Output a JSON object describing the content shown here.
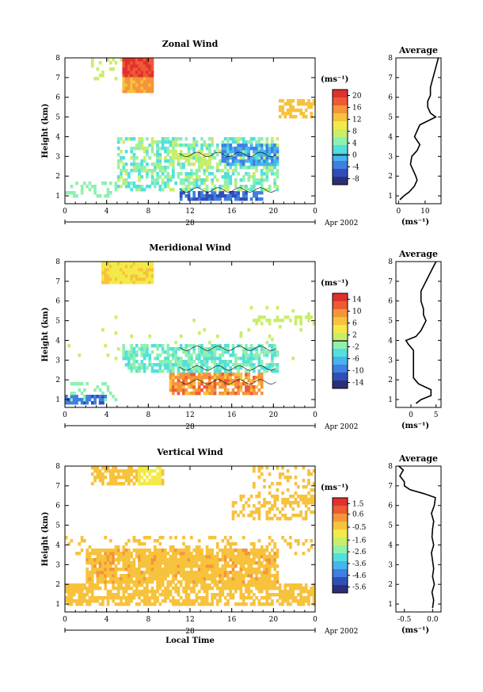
{
  "chart_data": [
    {
      "type": "heatmap",
      "title": "Zonal Wind",
      "ylabel": "Height (km)",
      "x_ticks": [
        "0",
        "4",
        "8",
        "12",
        "16",
        "20",
        "0"
      ],
      "y_ticks": [
        "1",
        "2",
        "3",
        "4",
        "5",
        "6",
        "7",
        "8"
      ],
      "xlim": [
        0,
        24
      ],
      "ylim": [
        0.6,
        8.0
      ],
      "date_day": "28",
      "date_month_year": "Apr 2002",
      "colorbar": {
        "unit": "(ms⁻¹)",
        "ticks": [
          "20",
          "16",
          "12",
          "8",
          "4",
          "0",
          "-4",
          "-8"
        ],
        "range": [
          -10,
          22
        ],
        "zero_line": 0
      },
      "average_profile": {
        "title": "Average",
        "xlabel": "(ms⁻¹)",
        "x_ticks": [
          "0",
          "10"
        ],
        "xlim": [
          -1,
          16
        ],
        "y_ticks": [
          "1",
          "2",
          "3",
          "4",
          "5",
          "6",
          "7",
          "8"
        ],
        "heights": [
          0.8,
          1.0,
          1.2,
          1.5,
          1.8,
          2.0,
          2.3,
          2.6,
          3.0,
          3.3,
          3.6,
          4.0,
          4.3,
          4.6,
          4.8,
          5.0,
          5.2,
          5.5,
          5.8,
          6.1,
          6.5,
          7.0,
          7.5,
          8.0
        ],
        "values": [
          0.5,
          2,
          4,
          6,
          7,
          6.5,
          5.5,
          4.5,
          5,
          7,
          8,
          6,
          7,
          8,
          11,
          14,
          12,
          11,
          11,
          12,
          12,
          13,
          14,
          15
        ]
      },
      "panels": {
        "top": 0.0
      }
    },
    {
      "type": "heatmap",
      "title": "Meridional Wind",
      "ylabel": "Height (km)",
      "x_ticks": [
        "0",
        "4",
        "8",
        "12",
        "16",
        "20",
        "0"
      ],
      "y_ticks": [
        "1",
        "2",
        "3",
        "4",
        "5",
        "6",
        "7",
        "8"
      ],
      "xlim": [
        0,
        24
      ],
      "ylim": [
        0.6,
        8.0
      ],
      "date_day": "28",
      "date_month_year": "Apr 2002",
      "colorbar": {
        "unit": "(ms⁻¹)",
        "ticks": [
          "14",
          "10",
          "6",
          "2",
          "-2",
          "-6",
          "-10",
          "-14"
        ],
        "range": [
          -16,
          16
        ],
        "zero_line": 0
      },
      "average_profile": {
        "title": "Average",
        "xlabel": "(ms⁻¹)",
        "x_ticks": [
          "0",
          "5"
        ],
        "xlim": [
          -3,
          6
        ],
        "y_ticks": [
          "1",
          "2",
          "3",
          "4",
          "5",
          "6",
          "7",
          "8"
        ],
        "heights": [
          0.8,
          1.0,
          1.2,
          1.5,
          1.8,
          2.1,
          2.5,
          3.0,
          3.5,
          3.8,
          4.0,
          4.2,
          4.5,
          5.0,
          5.3,
          5.6,
          6.0,
          6.5,
          7.0,
          7.5,
          8.0
        ],
        "values": [
          1,
          2,
          4,
          4,
          1.5,
          0.5,
          0.5,
          0.5,
          0.5,
          -0.5,
          -1,
          1,
          2,
          3,
          2.5,
          2.5,
          2,
          2,
          3,
          4,
          5
        ]
      }
    },
    {
      "type": "heatmap",
      "title": "Vertical Wind",
      "ylabel": "Height (km)",
      "xlabel": "Local Time",
      "x_ticks": [
        "0",
        "4",
        "8",
        "12",
        "16",
        "20",
        "0"
      ],
      "y_ticks": [
        "1",
        "2",
        "3",
        "4",
        "5",
        "6",
        "7",
        "8"
      ],
      "xlim": [
        0,
        24
      ],
      "ylim": [
        0.6,
        8.0
      ],
      "date_day": "28",
      "date_month_year": "Apr 2002",
      "colorbar": {
        "unit": "(ms⁻¹)",
        "ticks": [
          "1.5",
          "0.6",
          "-0.5",
          "-1.6",
          "-2.6",
          "-3.6",
          "-4.6",
          "-5.6"
        ],
        "range": [
          -6.1,
          2.0
        ]
      },
      "average_profile": {
        "title": "Average",
        "xlabel": "(ms⁻¹)",
        "x_ticks": [
          "-0.5",
          "0.0"
        ],
        "xlim": [
          -0.65,
          0.15
        ],
        "y_ticks": [
          "1",
          "2",
          "3",
          "4",
          "5",
          "6",
          "7",
          "8"
        ],
        "heights": [
          0.8,
          1.2,
          1.6,
          2.0,
          2.4,
          2.8,
          3.2,
          3.6,
          4.0,
          4.4,
          4.8,
          5.2,
          5.6,
          6.0,
          6.4,
          6.6,
          6.8,
          7.0,
          7.2,
          7.5,
          7.8,
          8.0
        ],
        "values": [
          0.0,
          0.02,
          -0.01,
          0.03,
          0.0,
          0.02,
          0.0,
          -0.02,
          0.02,
          -0.01,
          0.0,
          0.02,
          -0.02,
          0.03,
          0.05,
          -0.15,
          -0.4,
          -0.5,
          -0.5,
          -0.58,
          -0.52,
          -0.6
        ]
      }
    }
  ]
}
